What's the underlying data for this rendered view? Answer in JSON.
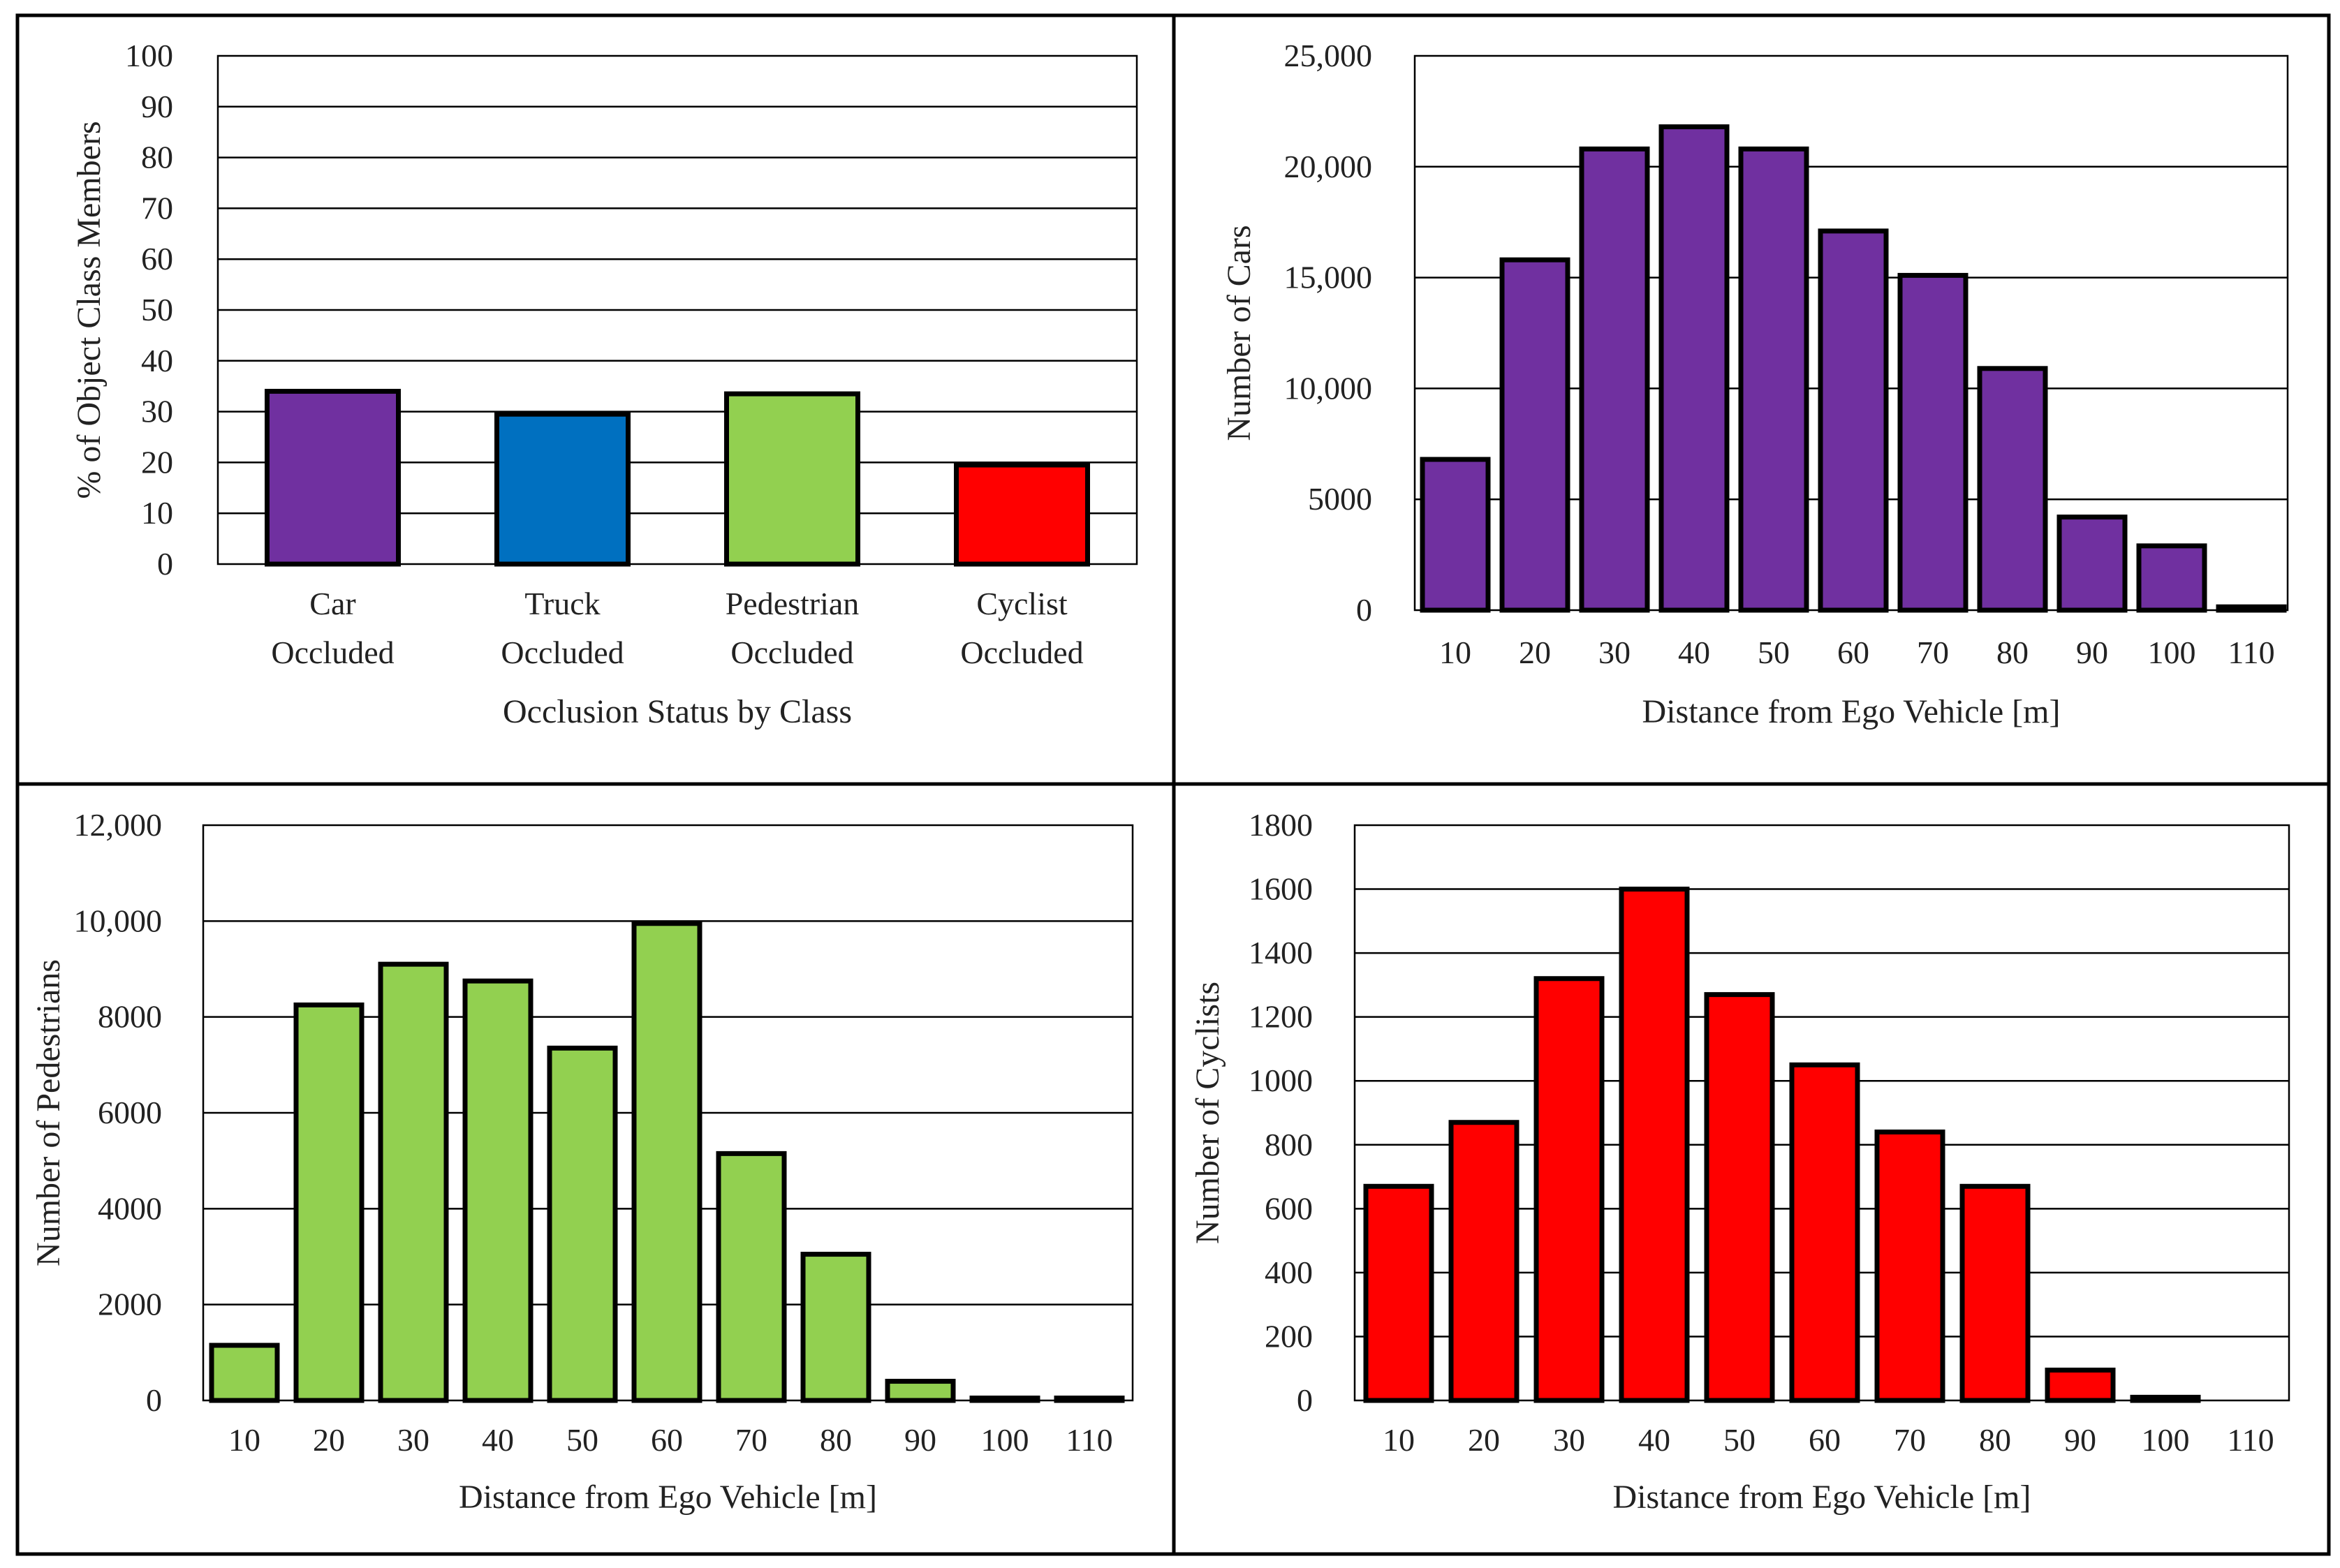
{
  "chart_data": [
    {
      "type": "bar",
      "title": "",
      "xlabel": "Occlusion Status by Class",
      "ylabel": "% of Object Class Members",
      "categories": [
        [
          "Car",
          "Occluded"
        ],
        [
          "Truck",
          "Occluded"
        ],
        [
          "Pedestrian",
          "Occluded"
        ],
        [
          "Cyclist",
          "Occluded"
        ]
      ],
      "values": [
        34,
        29.5,
        33.5,
        19.5
      ],
      "colors": [
        "#7030a0",
        "#0070c0",
        "#92d050",
        "#ff0000"
      ],
      "ylim": [
        0,
        100
      ],
      "yticks": [
        0,
        10,
        20,
        30,
        40,
        50,
        60,
        70,
        80,
        90,
        100
      ],
      "ytick_labels": [
        "0",
        "10",
        "20",
        "30",
        "40",
        "50",
        "60",
        "70",
        "80",
        "90",
        "100"
      ],
      "grid": true
    },
    {
      "type": "bar",
      "title": "",
      "xlabel": "Distance from Ego Vehicle [m]",
      "ylabel": "Number of Cars",
      "categories": [
        "10",
        "20",
        "30",
        "40",
        "50",
        "60",
        "70",
        "80",
        "90",
        "100",
        "110"
      ],
      "values": [
        6800,
        15800,
        20800,
        21800,
        20800,
        17100,
        15100,
        10900,
        4200,
        2900,
        150
      ],
      "color": "#7030a0",
      "ylim": [
        0,
        25000
      ],
      "yticks": [
        0,
        5000,
        10000,
        15000,
        20000,
        25000
      ],
      "ytick_labels": [
        "0",
        "5000",
        "10,000",
        "15,000",
        "20,000",
        "25,000"
      ],
      "grid": true
    },
    {
      "type": "bar",
      "title": "",
      "xlabel": "Distance from Ego Vehicle [m]",
      "ylabel": "Number of Pedestrians",
      "categories": [
        "10",
        "20",
        "30",
        "40",
        "50",
        "60",
        "70",
        "80",
        "90",
        "100",
        "110"
      ],
      "values": [
        1150,
        8250,
        9100,
        8750,
        7350,
        9950,
        5150,
        3050,
        400,
        50,
        50
      ],
      "color": "#92d050",
      "ylim": [
        0,
        12000
      ],
      "yticks": [
        0,
        2000,
        4000,
        6000,
        8000,
        10000,
        12000
      ],
      "ytick_labels": [
        "0",
        "2000",
        "4000",
        "6000",
        "8000",
        "10,000",
        "12,000"
      ],
      "grid": true
    },
    {
      "type": "bar",
      "title": "",
      "xlabel": "Distance from Ego Vehicle [m]",
      "ylabel": "Number of Cyclists",
      "categories": [
        "10",
        "20",
        "30",
        "40",
        "50",
        "60",
        "70",
        "80",
        "90",
        "100",
        "110"
      ],
      "values": [
        670,
        870,
        1320,
        1600,
        1270,
        1050,
        840,
        670,
        95,
        10,
        0
      ],
      "color": "#ff0000",
      "ylim": [
        0,
        1800
      ],
      "yticks": [
        0,
        200,
        400,
        600,
        800,
        1000,
        1200,
        1400,
        1600,
        1800
      ],
      "ytick_labels": [
        "0",
        "200",
        "400",
        "600",
        "800",
        "1000",
        "1200",
        "1400",
        "1600",
        "1800"
      ],
      "grid": true
    }
  ]
}
